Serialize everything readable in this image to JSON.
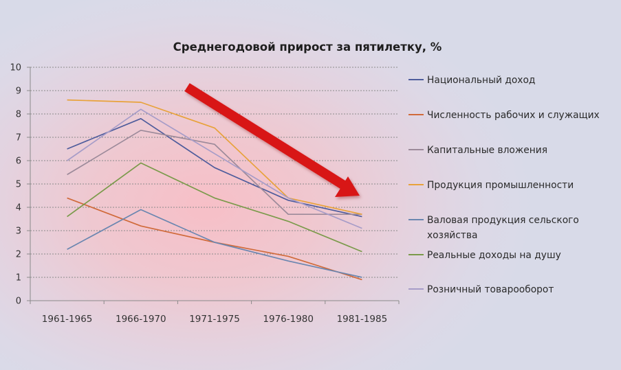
{
  "chart_data": {
    "type": "line",
    "title": "Среднегодовой прирост за пятилетку, %",
    "categories": [
      "1961-1965",
      "1966-1970",
      "1971-1975",
      "1976-1980",
      "1981-1985"
    ],
    "ylim": [
      0,
      10
    ],
    "yticks": [
      "0",
      "1",
      "2",
      "3",
      "4",
      "5",
      "6",
      "7",
      "8",
      "9",
      "10"
    ],
    "grid": true,
    "legend_position": "right",
    "series": [
      {
        "name": "Национальный доход",
        "color": "#4e5c9c",
        "values": [
          6.5,
          7.8,
          5.7,
          4.3,
          3.6
        ]
      },
      {
        "name": "Численность рабочих и служащих",
        "color": "#d06a3a",
        "values": [
          4.4,
          3.2,
          2.5,
          1.9,
          0.9
        ]
      },
      {
        "name": "Капитальные вложения",
        "color": "#9c8a9a",
        "values": [
          5.4,
          7.3,
          6.7,
          3.7,
          3.7
        ]
      },
      {
        "name": "Продукция промышленности",
        "color": "#e8a23a",
        "values": [
          8.6,
          8.5,
          7.4,
          4.4,
          3.7
        ]
      },
      {
        "name": "Валовая продукция сельского хозяйства",
        "color": "#6a86b0",
        "values": [
          2.2,
          3.9,
          2.5,
          1.7,
          1.0
        ]
      },
      {
        "name": "Реальные доходы на душу",
        "color": "#7a9a4a",
        "values": [
          3.6,
          5.9,
          4.4,
          3.4,
          2.1
        ]
      },
      {
        "name": "Розничный товарооборот",
        "color": "#a69cc8",
        "values": [
          6.0,
          8.2,
          6.3,
          4.4,
          3.1
        ]
      }
    ],
    "annotation": {
      "type": "arrow",
      "direction": "down-right",
      "color": "#d81818"
    }
  }
}
